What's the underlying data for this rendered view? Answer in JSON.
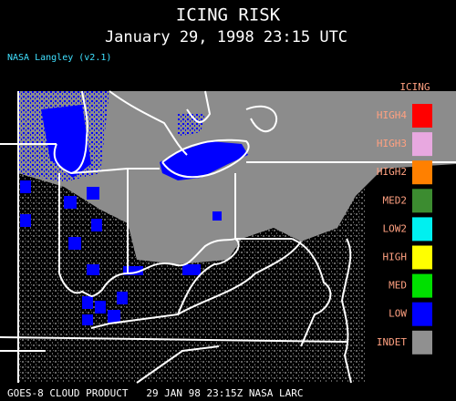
{
  "header": {
    "title": "ICING RISK",
    "subtitle": "January 29, 1998 23:15 UTC",
    "source": "NASA Langley (v2.1)"
  },
  "legend": {
    "title": "ICING",
    "items": [
      {
        "label": "HIGH4",
        "color": "#ff0000"
      },
      {
        "label": "HIGH3",
        "color": "#e8a8e0"
      },
      {
        "label": "HIGH2",
        "color": "#ff8000"
      },
      {
        "label": "MED2",
        "color": "#3c8c30"
      },
      {
        "label": "LOW2",
        "color": "#00f0f0"
      },
      {
        "label": "HIGH",
        "color": "#ffff00"
      },
      {
        "label": "MED",
        "color": "#00e000"
      },
      {
        "label": "LOW",
        "color": "#0000ff"
      },
      {
        "label": "INDET",
        "color": "#909090"
      }
    ]
  },
  "footer": "GOES-8 CLOUD PRODUCT   29 JAN 98 23:15Z NASA LARC"
}
